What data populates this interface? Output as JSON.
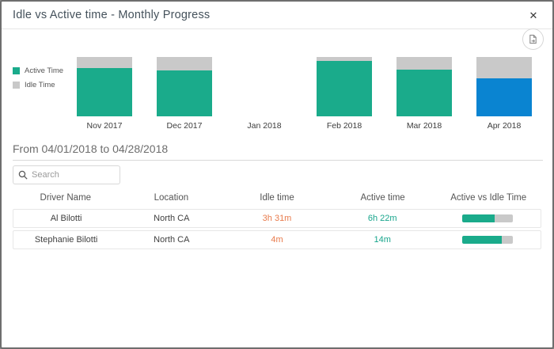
{
  "dialog": {
    "title": "Idle vs Active time - Monthly Progress",
    "close_glyph": "✕"
  },
  "colors": {
    "active": "#1aab8b",
    "idle": "#c9c9c9",
    "selected": "#0a84d1",
    "idle_text": "#e87a4b",
    "active_text": "#17a58c"
  },
  "chart": {
    "legend": [
      {
        "name": "active-time",
        "label": "Active Time",
        "color": "#1aab8b"
      },
      {
        "name": "idle-time",
        "label": "Idle Time",
        "color": "#c9c9c9"
      }
    ],
    "months": [
      {
        "label": "Nov 2017",
        "active_pct": 82,
        "idle_pct": 18,
        "selected": false
      },
      {
        "label": "Dec 2017",
        "active_pct": 77,
        "idle_pct": 23,
        "selected": false
      },
      {
        "label": "Jan 2018",
        "active_pct": 0,
        "idle_pct": 0,
        "selected": false
      },
      {
        "label": "Feb 2018",
        "active_pct": 93,
        "idle_pct": 7,
        "selected": false
      },
      {
        "label": "Mar 2018",
        "active_pct": 79,
        "idle_pct": 21,
        "selected": false
      },
      {
        "label": "Apr 2018",
        "active_pct": 64,
        "idle_pct": 36,
        "selected": true
      }
    ]
  },
  "chart_data": {
    "type": "bar",
    "subtype": "stacked-100pct",
    "title": "Idle vs Active time - Monthly Progress",
    "categories": [
      "Nov 2017",
      "Dec 2017",
      "Jan 2018",
      "Feb 2018",
      "Mar 2018",
      "Apr 2018"
    ],
    "series": [
      {
        "name": "Active Time",
        "values": [
          82,
          77,
          null,
          93,
          79,
          64
        ],
        "color": "#1aab8b"
      },
      {
        "name": "Idle Time",
        "values": [
          18,
          23,
          null,
          7,
          21,
          36
        ],
        "color": "#c9c9c9"
      }
    ],
    "selected_category": "Apr 2018",
    "selected_color": "#0a84d1",
    "legend_position": "left",
    "grid": false,
    "ylim": [
      0,
      100
    ]
  },
  "filter": {
    "range_label": "From 04/01/2018 to 04/28/2018"
  },
  "search": {
    "placeholder": "Search"
  },
  "table": {
    "columns": [
      "Driver Name",
      "Location",
      "Idle time",
      "Active time",
      "Active vs Idle Time"
    ],
    "rows": [
      {
        "driver": "Al Bilotti",
        "location": "North CA",
        "idle": "3h 31m",
        "active": "6h 22m",
        "active_pct": 64
      },
      {
        "driver": "Stephanie Bilotti",
        "location": "North CA",
        "idle": "4m",
        "active": "14m",
        "active_pct": 78
      }
    ]
  }
}
